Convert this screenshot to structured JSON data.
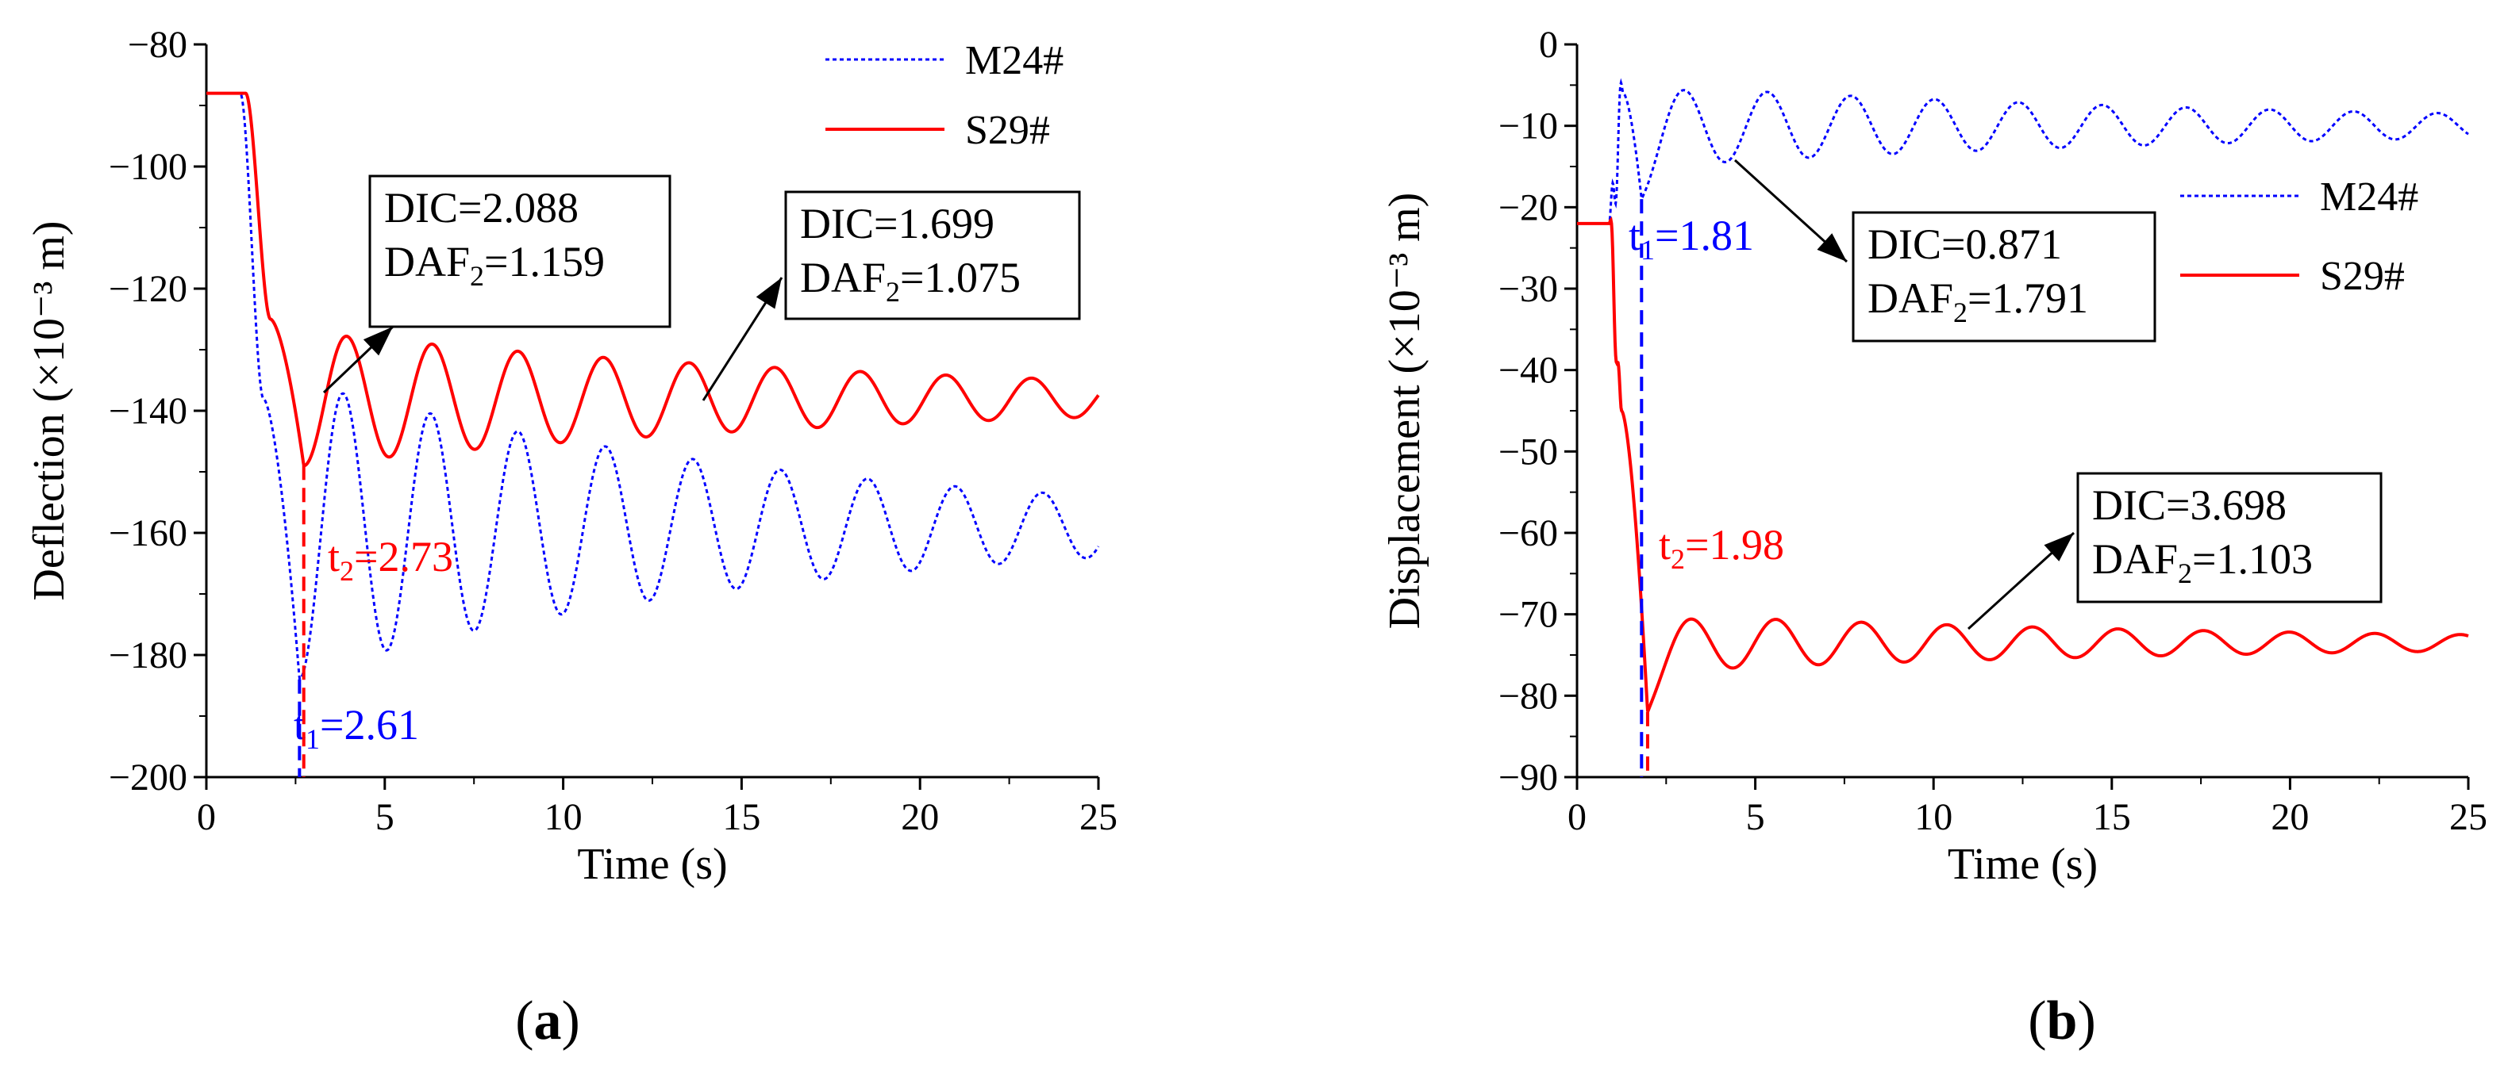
{
  "chart_data": [
    {
      "type": "line",
      "panel_label": "(a)",
      "panel_letter": "a",
      "xlabel": "Time (s)",
      "ylabel": "Deflection (×10⁻³ m)",
      "xlim": [
        0,
        25
      ],
      "ylim": [
        -200,
        -80
      ],
      "xticks": [
        0,
        5,
        10,
        15,
        20,
        25
      ],
      "yticks": [
        -200,
        -180,
        -160,
        -140,
        -120,
        -100,
        -80
      ],
      "legend_position": "top-right",
      "series": [
        {
          "name": "M24#",
          "color": "#0000ff",
          "style": "dotted",
          "model": {
            "base": -88,
            "start": 0.95,
            "mid": 1.6,
            "min_t": 2.61,
            "min_v": -184,
            "pre": -138,
            "final": -159,
            "amp0": 24,
            "amp_end": 5,
            "period": 2.45,
            "pre_amp": 0
          }
        },
        {
          "name": "S29#",
          "color": "#ff0000",
          "style": "solid",
          "model": {
            "base": -88,
            "start": 1.1,
            "mid": 1.8,
            "min_t": 2.73,
            "min_v": -149,
            "pre": -125,
            "final": -138,
            "amp0": 11,
            "amp_end": 3,
            "period": 2.4,
            "pre_amp": 0
          }
        }
      ],
      "markers": [
        {
          "series": "M24#",
          "t": 2.61,
          "color": "#0000ff",
          "label_main": "t",
          "label_sub": "1",
          "label_rest": "=2.61"
        },
        {
          "series": "S29#",
          "t": 2.73,
          "color": "#ff0000",
          "label_main": "t",
          "label_sub": "2",
          "label_rest": "=2.73"
        }
      ],
      "annotations": [
        {
          "line1": "DIC=2.088",
          "line2_main": "DAF",
          "line2_sub": "2",
          "line2_rest": "=1.159"
        },
        {
          "line1": "DIC=1.699",
          "line2_main": "DAF",
          "line2_sub": "2",
          "line2_rest": "=1.075"
        }
      ]
    },
    {
      "type": "line",
      "panel_label": "(b)",
      "panel_letter": "b",
      "xlabel": "Time (s)",
      "ylabel": "Displacement (×10⁻³ m)",
      "xlim": [
        0,
        25
      ],
      "ylim": [
        -90,
        0
      ],
      "xticks": [
        0,
        5,
        10,
        15,
        20,
        25
      ],
      "yticks": [
        -90,
        -80,
        -70,
        -60,
        -50,
        -40,
        -30,
        -20,
        -10,
        0
      ],
      "legend_position": "right",
      "series": [
        {
          "name": "M24#",
          "color": "#0000ff",
          "style": "dotted",
          "model": {
            "base": -22,
            "start": 0.9,
            "mid": 1.3,
            "min_t": 1.81,
            "min_v": -19,
            "pre": -6,
            "final": -10,
            "amp0": 5,
            "amp_end": 1.5,
            "period": 2.35,
            "pre_amp": 5
          }
        },
        {
          "name": "S29#",
          "color": "#ff0000",
          "style": "solid",
          "model": {
            "base": -22,
            "start": 0.9,
            "mid": 1.25,
            "min_t": 1.98,
            "min_v": -82,
            "pre": -45,
            "final": -73.5,
            "amp0": 3.5,
            "amp_end": 1,
            "period": 2.4,
            "pre_amp": 4
          }
        }
      ],
      "markers": [
        {
          "series": "M24#",
          "t": 1.81,
          "color": "#0000ff",
          "label_main": "t",
          "label_sub": "1",
          "label_rest": "=1.81"
        },
        {
          "series": "S29#",
          "t": 1.98,
          "color": "#ff0000",
          "label_main": "t",
          "label_sub": "2",
          "label_rest": "=1.98"
        }
      ],
      "annotations": [
        {
          "line1": "DIC=0.871",
          "line2_main": "DAF",
          "line2_sub": "2",
          "line2_rest": "=1.791"
        },
        {
          "line1": "DIC=3.698",
          "line2_main": "DAF",
          "line2_sub": "2",
          "line2_rest": "=1.103"
        }
      ]
    }
  ]
}
